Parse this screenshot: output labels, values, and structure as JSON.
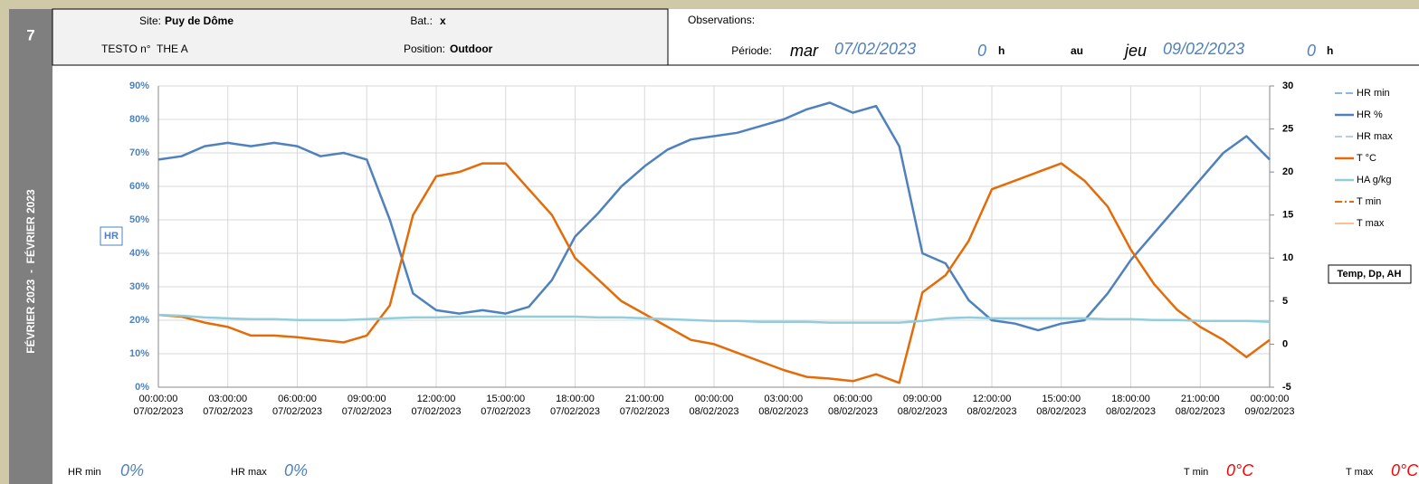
{
  "sidebar": {
    "number": "7",
    "period": "FÉVRIER 2023  -  FÉVRIER 2023"
  },
  "header": {
    "site_label": "Site:",
    "site": "Puy de Dôme",
    "bat_label": "Bat.:",
    "bat": "x",
    "testo": "TESTO n°  THE A",
    "position_label": "Position:",
    "position": "Outdoor",
    "observations_label": "Observations:",
    "period_label": "Période:",
    "start_day": "mar",
    "start_date": "07/02/2023",
    "start_hour": "0",
    "start_unit": "h",
    "to": "au",
    "end_day": "jeu",
    "end_date": "09/02/2023",
    "end_hour": "0",
    "end_unit": "h"
  },
  "footer": [
    {
      "label": "HR min",
      "value": "0%",
      "color": "#4f81bd"
    },
    {
      "label": "HR max",
      "value": "0%",
      "color": "#4f81bd"
    },
    {
      "label": "T min",
      "value": "0°C",
      "color": "#ff0000"
    },
    {
      "label": "T max",
      "value": "0°C",
      "color": "#ff0000"
    }
  ],
  "chart_data": {
    "type": "line",
    "y_label": "HR",
    "y2_label": "Temp, Dp, AH",
    "grid": true,
    "legend": "right",
    "xlim": [
      "2023-02-07T00:00:00",
      "2023-02-09T00:00:00"
    ],
    "xticks": [
      {
        "value": "2023-02-07T00:00:00",
        "label": [
          "00:00:00",
          "07/02/2023"
        ]
      },
      {
        "value": "2023-02-07T03:00:00",
        "label": [
          "03:00:00",
          "07/02/2023"
        ]
      },
      {
        "value": "2023-02-07T06:00:00",
        "label": [
          "06:00:00",
          "07/02/2023"
        ]
      },
      {
        "value": "2023-02-07T09:00:00",
        "label": [
          "09:00:00",
          "07/02/2023"
        ]
      },
      {
        "value": "2023-02-07T12:00:00",
        "label": [
          "12:00:00",
          "07/02/2023"
        ]
      },
      {
        "value": "2023-02-07T15:00:00",
        "label": [
          "15:00:00",
          "07/02/2023"
        ]
      },
      {
        "value": "2023-02-07T18:00:00",
        "label": [
          "18:00:00",
          "07/02/2023"
        ]
      },
      {
        "value": "2023-02-07T21:00:00",
        "label": [
          "21:00:00",
          "07/02/2023"
        ]
      },
      {
        "value": "2023-02-08T00:00:00",
        "label": [
          "00:00:00",
          "08/02/2023"
        ]
      },
      {
        "value": "2023-02-08T03:00:00",
        "label": [
          "03:00:00",
          "08/02/2023"
        ]
      },
      {
        "value": "2023-02-08T06:00:00",
        "label": [
          "06:00:00",
          "08/02/2023"
        ]
      },
      {
        "value": "2023-02-08T09:00:00",
        "label": [
          "09:00:00",
          "08/02/2023"
        ]
      },
      {
        "value": "2023-02-08T12:00:00",
        "label": [
          "12:00:00",
          "08/02/2023"
        ]
      },
      {
        "value": "2023-02-08T15:00:00",
        "label": [
          "15:00:00",
          "08/02/2023"
        ]
      },
      {
        "value": "2023-02-08T18:00:00",
        "label": [
          "18:00:00",
          "08/02/2023"
        ]
      },
      {
        "value": "2023-02-08T21:00:00",
        "label": [
          "21:00:00",
          "08/02/2023"
        ]
      },
      {
        "value": "2023-02-09T00:00:00",
        "label": [
          "00:00:00",
          "09/02/2023"
        ]
      }
    ],
    "ylim": [
      0,
      90
    ],
    "yticks": [
      {
        "value": 0,
        "label": "0%"
      },
      {
        "value": 10,
        "label": "10%"
      },
      {
        "value": 20,
        "label": "20%"
      },
      {
        "value": 30,
        "label": "30%"
      },
      {
        "value": 40,
        "label": "40%"
      },
      {
        "value": 50,
        "label": "50%"
      },
      {
        "value": 60,
        "label": "60%"
      },
      {
        "value": 70,
        "label": "70%"
      },
      {
        "value": 80,
        "label": "80%"
      },
      {
        "value": 90,
        "label": "90%"
      }
    ],
    "y2lim": [
      -5,
      30
    ],
    "y2ticks": [
      -5,
      0,
      5,
      10,
      15,
      20,
      25,
      30
    ],
    "x": [
      "2023-02-07T00:00:00",
      "2023-02-07T01:00:00",
      "2023-02-07T02:00:00",
      "2023-02-07T03:00:00",
      "2023-02-07T04:00:00",
      "2023-02-07T05:00:00",
      "2023-02-07T06:00:00",
      "2023-02-07T07:00:00",
      "2023-02-07T08:00:00",
      "2023-02-07T09:00:00",
      "2023-02-07T10:00:00",
      "2023-02-07T11:00:00",
      "2023-02-07T12:00:00",
      "2023-02-07T13:00:00",
      "2023-02-07T14:00:00",
      "2023-02-07T15:00:00",
      "2023-02-07T16:00:00",
      "2023-02-07T17:00:00",
      "2023-02-07T18:00:00",
      "2023-02-07T19:00:00",
      "2023-02-07T20:00:00",
      "2023-02-07T21:00:00",
      "2023-02-07T22:00:00",
      "2023-02-07T23:00:00",
      "2023-02-08T00:00:00",
      "2023-02-08T01:00:00",
      "2023-02-08T02:00:00",
      "2023-02-08T03:00:00",
      "2023-02-08T04:00:00",
      "2023-02-08T05:00:00",
      "2023-02-08T06:00:00",
      "2023-02-08T07:00:00",
      "2023-02-08T08:00:00",
      "2023-02-08T09:00:00",
      "2023-02-08T10:00:00",
      "2023-02-08T11:00:00",
      "2023-02-08T12:00:00",
      "2023-02-08T13:00:00",
      "2023-02-08T14:00:00",
      "2023-02-08T15:00:00",
      "2023-02-08T16:00:00",
      "2023-02-08T17:00:00",
      "2023-02-08T18:00:00",
      "2023-02-08T19:00:00",
      "2023-02-08T20:00:00",
      "2023-02-08T21:00:00",
      "2023-02-08T22:00:00",
      "2023-02-08T23:00:00",
      "2023-02-09T00:00:00"
    ],
    "series": [
      {
        "name": "HR min",
        "color": "#8db4e2",
        "dash": "8 4",
        "width": 2,
        "axis": "y",
        "values": [
          null,
          null,
          null,
          null,
          null,
          null,
          null,
          null,
          null,
          null,
          null,
          null,
          null,
          null,
          null,
          null,
          null,
          null,
          null,
          null,
          null,
          null,
          null,
          null,
          null,
          null,
          null,
          null,
          null,
          null,
          null,
          null,
          null,
          null,
          null,
          null,
          null,
          null,
          null,
          null,
          null,
          null,
          null,
          null,
          null,
          null,
          null,
          null,
          null
        ]
      },
      {
        "name": "HR %",
        "color": "#4f81bd",
        "dash": "",
        "width": 2.5,
        "axis": "y",
        "values": [
          68,
          69,
          72,
          73,
          72,
          73,
          72,
          69,
          70,
          68,
          50,
          28,
          23,
          22,
          23,
          22,
          24,
          32,
          45,
          52,
          60,
          66,
          71,
          74,
          75,
          76,
          78,
          80,
          83,
          85,
          82,
          84,
          72,
          40,
          37,
          26,
          20,
          19,
          17,
          19,
          20,
          28,
          38,
          46,
          54,
          62,
          70,
          75,
          68
        ]
      },
      {
        "name": "HR max",
        "color": "#b8cce4",
        "dash": "8 4",
        "width": 2,
        "axis": "y",
        "values": [
          null,
          null,
          null,
          null,
          null,
          null,
          null,
          null,
          null,
          null,
          null,
          null,
          null,
          null,
          null,
          null,
          null,
          null,
          null,
          null,
          null,
          null,
          null,
          null,
          null,
          null,
          null,
          null,
          null,
          null,
          null,
          null,
          null,
          null,
          null,
          null,
          null,
          null,
          null,
          null,
          null,
          null,
          null,
          null,
          null,
          null,
          null,
          null,
          null
        ]
      },
      {
        "name": "T °C",
        "color": "#e36c09",
        "dash": "",
        "width": 2.5,
        "axis": "y2",
        "values": [
          3.4,
          3.2,
          2.5,
          2.0,
          1.0,
          1.0,
          0.8,
          0.5,
          0.2,
          1.0,
          4.5,
          15,
          19.5,
          20,
          21,
          21,
          18,
          15,
          10,
          7.5,
          5,
          3.5,
          2,
          0.5,
          0,
          -1,
          -2,
          -3,
          -3.8,
          -4,
          -4.3,
          -3.5,
          -4.5,
          6,
          8,
          12,
          18,
          19,
          20,
          21,
          19,
          16,
          11,
          7,
          4,
          2,
          0.5,
          -1.5,
          0.5
        ]
      },
      {
        "name": "HA g/kg",
        "color": "#92cddc",
        "dash": "",
        "width": 2.5,
        "axis": "y2",
        "values": [
          3.4,
          3.3,
          3.1,
          3.0,
          2.9,
          2.9,
          2.8,
          2.8,
          2.8,
          2.9,
          3.0,
          3.1,
          3.1,
          3.2,
          3.2,
          3.2,
          3.2,
          3.2,
          3.2,
          3.1,
          3.1,
          3.0,
          2.9,
          2.8,
          2.7,
          2.7,
          2.6,
          2.6,
          2.6,
          2.5,
          2.5,
          2.5,
          2.5,
          2.7,
          3.0,
          3.1,
          3.0,
          3.0,
          3.0,
          3.0,
          3.0,
          2.9,
          2.9,
          2.8,
          2.8,
          2.7,
          2.7,
          2.7,
          2.6
        ]
      },
      {
        "name": "T min",
        "color": "#e36c09",
        "dash": "8 3 2 3",
        "width": 2,
        "axis": "y2",
        "values": [
          null,
          null,
          null,
          null,
          null,
          null,
          null,
          null,
          null,
          null,
          null,
          null,
          null,
          null,
          null,
          null,
          null,
          null,
          null,
          null,
          null,
          null,
          null,
          null,
          null,
          null,
          null,
          null,
          null,
          null,
          null,
          null,
          null,
          null,
          null,
          null,
          null,
          null,
          null,
          null,
          null,
          null,
          null,
          null,
          null,
          null,
          null,
          null,
          null
        ]
      },
      {
        "name": "T max",
        "color": "#fac090",
        "dash": "",
        "width": 2,
        "axis": "y2",
        "values": [
          null,
          null,
          null,
          null,
          null,
          null,
          null,
          null,
          null,
          null,
          null,
          null,
          null,
          null,
          null,
          null,
          null,
          null,
          null,
          null,
          null,
          null,
          null,
          null,
          null,
          null,
          null,
          null,
          null,
          null,
          null,
          null,
          null,
          null,
          null,
          null,
          null,
          null,
          null,
          null,
          null,
          null,
          null,
          null,
          null,
          null,
          null,
          null,
          null
        ]
      }
    ]
  }
}
